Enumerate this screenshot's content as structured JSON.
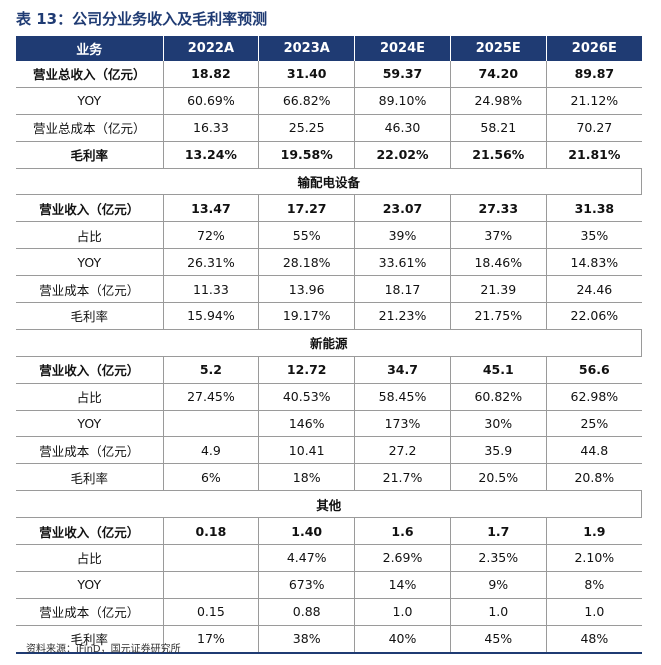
{
  "title": "表 13：公司分业务收入及毛利率预测",
  "columns": [
    "业务",
    "2022A",
    "2023A",
    "2024E",
    "2025E",
    "2026E"
  ],
  "rows": [
    {
      "type": "data",
      "bold": true,
      "cells": [
        "营业总收入（亿元）",
        "18.82",
        "31.40",
        "59.37",
        "74.20",
        "89.87"
      ]
    },
    {
      "type": "data",
      "bold": false,
      "cells": [
        "YOY",
        "60.69%",
        "66.82%",
        "89.10%",
        "24.98%",
        "21.12%"
      ]
    },
    {
      "type": "data",
      "bold": false,
      "cells": [
        "营业总成本（亿元）",
        "16.33",
        "25.25",
        "46.30",
        "58.21",
        "70.27"
      ]
    },
    {
      "type": "data",
      "bold": true,
      "cells": [
        "毛利率",
        "13.24%",
        "19.58%",
        "22.02%",
        "21.56%",
        "21.81%"
      ]
    },
    {
      "type": "section",
      "label": "输配电设备"
    },
    {
      "type": "data",
      "bold": true,
      "cells": [
        "营业收入（亿元）",
        "13.47",
        "17.27",
        "23.07",
        "27.33",
        "31.38"
      ]
    },
    {
      "type": "data",
      "bold": false,
      "cells": [
        "占比",
        "72%",
        "55%",
        "39%",
        "37%",
        "35%"
      ]
    },
    {
      "type": "data",
      "bold": false,
      "cells": [
        "YOY",
        "26.31%",
        "28.18%",
        "33.61%",
        "18.46%",
        "14.83%"
      ]
    },
    {
      "type": "data",
      "bold": false,
      "cells": [
        "营业成本（亿元）",
        "11.33",
        "13.96",
        "18.17",
        "21.39",
        "24.46"
      ]
    },
    {
      "type": "data",
      "bold": false,
      "cells": [
        "毛利率",
        "15.94%",
        "19.17%",
        "21.23%",
        "21.75%",
        "22.06%"
      ]
    },
    {
      "type": "section",
      "label": "新能源"
    },
    {
      "type": "data",
      "bold": true,
      "cells": [
        "营业收入（亿元）",
        "5.2",
        "12.72",
        "34.7",
        "45.1",
        "56.6"
      ]
    },
    {
      "type": "data",
      "bold": false,
      "cells": [
        "占比",
        "27.45%",
        "40.53%",
        "58.45%",
        "60.82%",
        "62.98%"
      ]
    },
    {
      "type": "data",
      "bold": false,
      "cells": [
        "YOY",
        "",
        "146%",
        "173%",
        "30%",
        "25%"
      ]
    },
    {
      "type": "data",
      "bold": false,
      "cells": [
        "营业成本（亿元）",
        "4.9",
        "10.41",
        "27.2",
        "35.9",
        "44.8"
      ]
    },
    {
      "type": "data",
      "bold": false,
      "cells": [
        "毛利率",
        "6%",
        "18%",
        "21.7%",
        "20.5%",
        "20.8%"
      ]
    },
    {
      "type": "section",
      "label": "其他"
    },
    {
      "type": "data",
      "bold": true,
      "cells": [
        "营业收入（亿元）",
        "0.18",
        "1.40",
        "1.6",
        "1.7",
        "1.9"
      ]
    },
    {
      "type": "data",
      "bold": false,
      "cells": [
        "占比",
        "",
        "4.47%",
        "2.69%",
        "2.35%",
        "2.10%"
      ]
    },
    {
      "type": "data",
      "bold": false,
      "cells": [
        "YOY",
        "",
        "673%",
        "14%",
        "9%",
        "8%"
      ]
    },
    {
      "type": "data",
      "bold": false,
      "cells": [
        "营业成本（亿元）",
        "0.15",
        "0.88",
        "1.0",
        "1.0",
        "1.0"
      ]
    },
    {
      "type": "data",
      "bold": false,
      "cells": [
        "毛利率",
        "17%",
        "38%",
        "40%",
        "45%",
        "48%"
      ]
    }
  ],
  "source": "资料来源：iFinD，国元证券研究所"
}
